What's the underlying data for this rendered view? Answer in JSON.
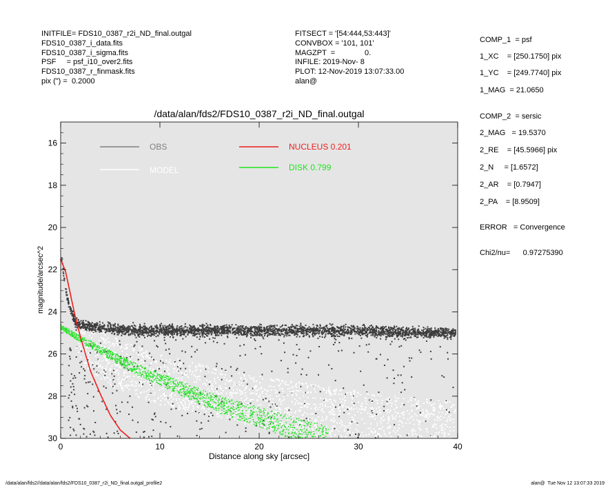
{
  "header_left": [
    "INITFILE= FDS10_0387_r2i_ND_final.outgal",
    "FDS10_0387_i_data.fits",
    "FDS10_0387_i_sigma.fits",
    "PSF     = psf_i10_over2.fits",
    "FDS10_0387_r_finmask.fits",
    "pix (\") =  0.2000"
  ],
  "header_mid": [
    "FITSECT = '[54:444,53:443]'",
    "CONVBOX = '101, 101'",
    "MAGZPT  =              0.",
    "INFILE: 2019-Nov- 8",
    "PLOT: 12-Nov-2019 13:07:33.00",
    "alan@"
  ],
  "right_panel": [
    "COMP_1  = psf",
    "1_XC    = [250.1750] pix",
    "1_YC    = [249.7740] pix",
    "1_MAG  = 21.0650",
    "COMP_2  = sersic",
    "2_MAG   = 19.5370",
    "2_RE    = [45.5966] pix",
    "2_N     = [1.6572]",
    "2_AR    = [0.7947]",
    "2_PA    = [8.9509]",
    "ERROR   = Convergence",
    "Chi2/nu=      0.97275390"
  ],
  "footer_left": "/data/alan/fds2//data/alan/fds2/FDS10_0387_r2i_ND_final.outgal_profile2",
  "footer_right": "alan@  Tue Nov 12 13:07:33 2019",
  "chart_data": {
    "type": "scatter",
    "title": "/data/alan/fds2/FDS10_0387_r2i_ND_final.outgal",
    "xlabel": "Distance along sky [arcsec]",
    "ylabel": "magnitude/arcsec^2",
    "xlim": [
      0,
      40
    ],
    "ylim": [
      30,
      15
    ],
    "y_inverted": true,
    "x_ticks": [
      0,
      10,
      20,
      30,
      40
    ],
    "y_ticks": [
      16,
      18,
      20,
      22,
      24,
      26,
      28,
      30
    ],
    "grid": false,
    "background": "#e5e5e5",
    "legend": [
      {
        "label": "OBS",
        "color": "#7f7f7f"
      },
      {
        "label": "MODEL",
        "color": "#ffffff"
      },
      {
        "label": "NUCLEUS  0.201",
        "color": "#ee1c1c"
      },
      {
        "label": "DISK  0.799",
        "color": "#1ee41e"
      }
    ],
    "series": [
      {
        "name": "OBS",
        "color": "#3c3c3c",
        "description_values": "noisy scatter; bright core ~21.5 at r≈0, plateau ~24.7-25.2 for r>2 with scatter to 30",
        "x": [
          0.1,
          0.3,
          0.5,
          0.8,
          1.2,
          1.6,
          2,
          3,
          5,
          8,
          10,
          15,
          20,
          25,
          30,
          35,
          39
        ],
        "y": [
          21.6,
          22.2,
          22.9,
          23.6,
          24.2,
          24.6,
          24.6,
          24.7,
          24.8,
          24.9,
          24.9,
          24.9,
          24.9,
          24.9,
          24.9,
          25.0,
          25.0
        ]
      },
      {
        "name": "MODEL",
        "color": "#ffffff",
        "x": [
          0,
          5,
          10,
          15,
          20,
          25,
          30,
          35,
          40
        ],
        "y": [
          24.7,
          26.2,
          27.0,
          27.5,
          27.9,
          28.2,
          28.5,
          28.7,
          28.9
        ]
      },
      {
        "name": "NUCLEUS",
        "color": "#ee1c1c",
        "x": [
          0,
          0.5,
          1,
          1.5,
          2,
          2.5,
          3,
          4,
          5,
          6,
          7
        ],
        "y": [
          21.5,
          22.1,
          23.2,
          24.3,
          25.2,
          26.0,
          26.8,
          27.9,
          28.9,
          29.6,
          30.0
        ]
      },
      {
        "name": "DISK",
        "color": "#1ee41e",
        "x": [
          0,
          2,
          4,
          6,
          8,
          10,
          12,
          14,
          16,
          18,
          20,
          22,
          24,
          26,
          27
        ],
        "y": [
          24.7,
          25.3,
          25.8,
          26.3,
          26.8,
          27.2,
          27.6,
          28.0,
          28.4,
          28.7,
          29.0,
          29.3,
          29.6,
          29.9,
          30.0
        ]
      }
    ]
  }
}
